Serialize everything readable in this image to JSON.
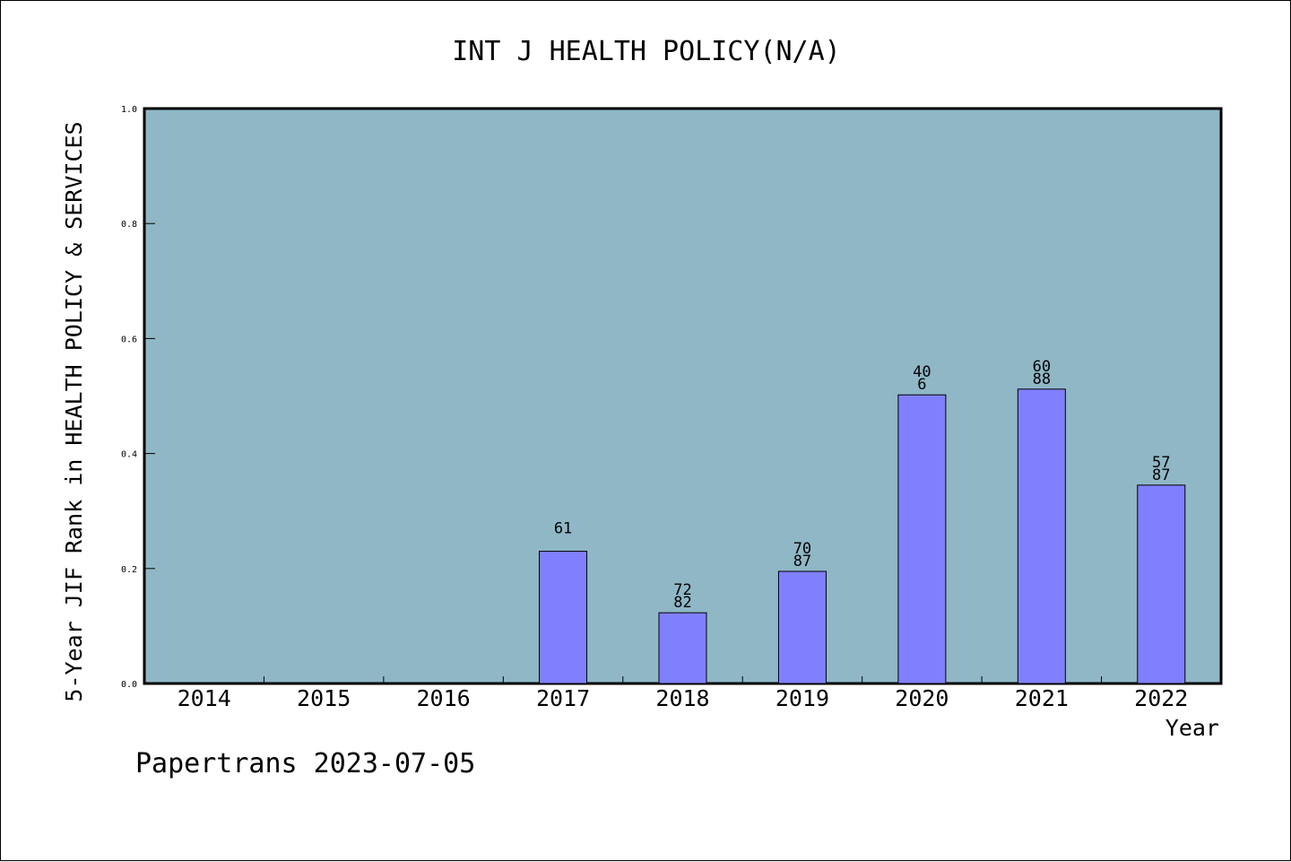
{
  "chart_data": {
    "type": "bar",
    "title": "INT J HEALTH POLICY(N/A)",
    "xlabel": "Year",
    "ylabel": "5-Year JIF Rank in HEALTH POLICY & SERVICES",
    "categories": [
      "2014",
      "2015",
      "2016",
      "2017",
      "2018",
      "2019",
      "2020",
      "2021",
      "2022"
    ],
    "values": [
      null,
      null,
      null,
      0.23,
      0.123,
      0.195,
      0.502,
      0.512,
      0.345
    ],
    "bar_labels": [
      [],
      [],
      [],
      [
        "61"
      ],
      [
        "72",
        "82"
      ],
      [
        "70",
        "87"
      ],
      [
        "40",
        "6"
      ],
      [
        "60",
        "88"
      ],
      [
        "57",
        "87"
      ]
    ],
    "ylim": [
      0,
      1.0
    ],
    "yticks": [
      "0.0",
      "0.2",
      "0.4",
      "0.6",
      "0.8",
      "1.0"
    ],
    "grid": false,
    "colors": {
      "plot_background": "#8fb7c6",
      "bar_fill": "#8080ff",
      "bar_stroke": "#000000"
    }
  },
  "footer": {
    "text": "Papertrans 2023-07-05"
  }
}
